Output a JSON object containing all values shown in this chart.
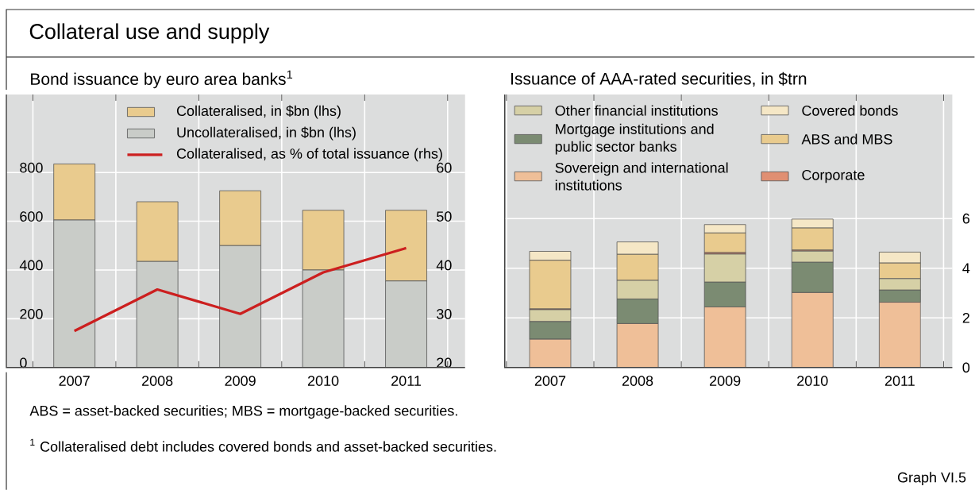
{
  "chart_data": [
    {
      "type": "bar",
      "stacked": true,
      "title": "Collateral use and supply",
      "subtitle": "Bond issuance by euro area banks$^{1}$",
      "categories": [
        "2007",
        "2008",
        "2009",
        "2010",
        "2011"
      ],
      "series": [
        {
          "name": "Uncollateralised, in $bn (lhs)",
          "color": "#c9ccc8",
          "values": [
            605,
            435,
            500,
            400,
            355
          ]
        },
        {
          "name": "Collateralised, in $bn (lhs)",
          "color": "#e9cb8e",
          "values": [
            230,
            245,
            225,
            245,
            290
          ]
        },
        {
          "name": "Collateralised, as % of total issuance (rhs)",
          "type": "line",
          "axis": "y2",
          "color": "#cc1f1f",
          "values": [
            27.5,
            36,
            31,
            39.5,
            44.5
          ]
        }
      ],
      "ylim": [
        0,
        1120
      ],
      "yticks": [
        0,
        200,
        400,
        600,
        800
      ],
      "y2lim": [
        20,
        76
      ],
      "y2ticks": [
        20,
        30,
        40,
        50,
        60
      ],
      "grid": true,
      "legend": "top right",
      "annotations": [
        "ABS = asset-backed securities; MBS = mortgage-backed securities.",
        "$^{1}$ Collateralised debt includes covered bonds and asset-backed securities.",
        "Graph VI.5"
      ]
    },
    {
      "type": "bar",
      "stacked": true,
      "title": "Issuance of AAA-rated securities, in $trn",
      "categories": [
        "2007",
        "2008",
        "2009",
        "2010",
        "2011"
      ],
      "series": [
        {
          "name": "Sovereign and international institutions",
          "color": "#efbf98",
          "values": [
            1.14,
            1.77,
            2.44,
            3.02,
            2.63
          ]
        },
        {
          "name": "Mortgage institutions and public sector banks",
          "color": "#7b8b72",
          "values": [
            0.71,
            0.99,
            1.0,
            1.22,
            0.49
          ]
        },
        {
          "name": "Other financial institutions",
          "color": "#d6d0a6",
          "values": [
            0.48,
            0.75,
            1.13,
            0.45,
            0.46
          ]
        },
        {
          "name": "Corporate",
          "color": "#e08f72",
          "values": [
            0.03,
            null,
            0.06,
            0.04,
            null
          ]
        },
        {
          "name": "ABS and MBS",
          "color": "#e9cb8e",
          "values": [
            1.96,
            1.05,
            0.79,
            0.89,
            0.63
          ]
        },
        {
          "name": "Covered bonds",
          "color": "#f5e7c6",
          "values": [
            0.36,
            0.5,
            0.34,
            0.36,
            0.44
          ]
        }
      ],
      "ylim": [
        0,
        11
      ],
      "yticks": [
        0,
        2,
        4,
        6
      ],
      "grid": true,
      "legend": "top left"
    }
  ]
}
